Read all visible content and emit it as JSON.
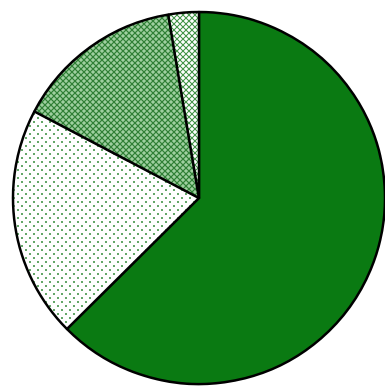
{
  "chart_data": {
    "type": "pie",
    "title": "",
    "start_angle_deg": 0,
    "direction": "clockwise",
    "outline_color": "#000000",
    "slices": [
      {
        "value": 61.5,
        "fill": "solid",
        "color": "#0a7a12"
      },
      {
        "value": 19.8,
        "fill": "dots",
        "color": "#2c8a34"
      },
      {
        "value": 14.4,
        "fill": "crosshatch-dense",
        "color": "#2f8f37"
      },
      {
        "value": 2.6,
        "fill": "crosshatch-light",
        "color": "#2f8f37"
      }
    ]
  }
}
